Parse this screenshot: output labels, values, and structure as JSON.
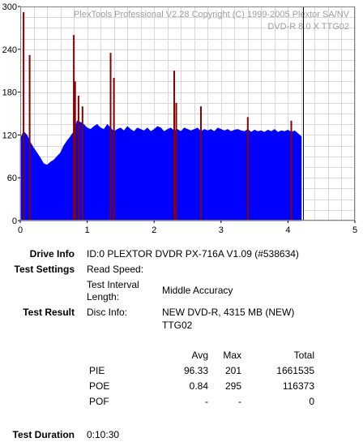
{
  "chart_data": {
    "type": "bar",
    "title": "PlexTools Professional V2.28 Copyright (C) 1999-2005 Plextor SA/NV",
    "subtitle": "DVD-R   8.0 X   TTG02",
    "xlim": [
      0,
      5
    ],
    "ylim": [
      0,
      300
    ],
    "x_ticks": [
      0,
      1,
      2,
      3,
      4,
      5
    ],
    "y_ticks": [
      0,
      60,
      120,
      180,
      240,
      300
    ],
    "grid": true,
    "data_end_x": 4.22,
    "series": [
      {
        "color": "#0000ff",
        "x": [
          0.0,
          0.05,
          0.1,
          0.15,
          0.2,
          0.25,
          0.3,
          0.35,
          0.4,
          0.45,
          0.5,
          0.55,
          0.6,
          0.65,
          0.7,
          0.75,
          0.8,
          0.85,
          0.9,
          0.95,
          1.0,
          1.05,
          1.1,
          1.15,
          1.2,
          1.25,
          1.3,
          1.35,
          1.4,
          1.45,
          1.5,
          1.55,
          1.6,
          1.65,
          1.7,
          1.75,
          1.8,
          1.85,
          1.9,
          1.95,
          2.0,
          2.05,
          2.1,
          2.15,
          2.2,
          2.25,
          2.3,
          2.35,
          2.4,
          2.45,
          2.5,
          2.55,
          2.6,
          2.65,
          2.7,
          2.75,
          2.8,
          2.85,
          2.9,
          2.95,
          3.0,
          3.05,
          3.1,
          3.15,
          3.2,
          3.25,
          3.3,
          3.35,
          3.4,
          3.45,
          3.5,
          3.55,
          3.6,
          3.65,
          3.7,
          3.75,
          3.8,
          3.85,
          3.9,
          3.95,
          4.0,
          4.05,
          4.1,
          4.15,
          4.2
        ],
        "values": [
          115,
          125,
          120,
          110,
          102,
          95,
          88,
          80,
          78,
          82,
          85,
          90,
          95,
          105,
          112,
          118,
          125,
          140,
          138,
          135,
          130,
          128,
          132,
          135,
          130,
          128,
          135,
          130,
          125,
          128,
          130,
          126,
          132,
          128,
          125,
          130,
          128,
          126,
          130,
          125,
          128,
          132,
          130,
          125,
          128,
          130,
          126,
          128,
          125,
          130,
          128,
          126,
          128,
          130,
          125,
          128,
          126,
          128,
          125,
          130,
          128,
          126,
          128,
          125,
          127,
          128,
          126,
          125,
          128,
          124,
          127,
          125,
          126,
          124,
          127,
          125,
          128,
          124,
          126,
          125,
          127,
          124,
          126,
          122,
          118
        ]
      },
      {
        "color": "#8b0000",
        "x": [
          0.05,
          0.14,
          0.8,
          0.82,
          0.87,
          0.93,
          1.35,
          1.4,
          2.3,
          2.33,
          2.7,
          3.4,
          4.05
        ],
        "values": [
          292,
          232,
          260,
          195,
          175,
          160,
          235,
          200,
          210,
          165,
          160,
          145,
          140
        ]
      }
    ]
  },
  "info": {
    "drive_info_label": "Drive Info",
    "drive_info_value": "ID:0 PLEXTOR DVDR PX-716A V1.09 (#538634)",
    "test_settings_label": "Test Settings",
    "read_speed_label": "Read Speed:",
    "interval_label_1": "Test Interval",
    "interval_label_2": "Length:",
    "interval_value": "Middle Accuracy",
    "test_result_label": "Test Result",
    "disc_info_label": "Disc Info:",
    "disc_info_value_1": "NEW DVD-R, 4315 MB (NEW)",
    "disc_info_value_2": "TTG02",
    "test_duration_label": "Test Duration",
    "test_duration_value": "0:10:30"
  },
  "results": {
    "headers": {
      "avg": "Avg",
      "max": "Max",
      "total": "Total"
    },
    "rows": [
      {
        "name": "PIE",
        "avg": "96.33",
        "max": "201",
        "total": "1661535"
      },
      {
        "name": "POE",
        "avg": "0.84",
        "max": "295",
        "total": "116373"
      },
      {
        "name": "POF",
        "avg": "-",
        "max": "-",
        "total": "0"
      }
    ]
  }
}
